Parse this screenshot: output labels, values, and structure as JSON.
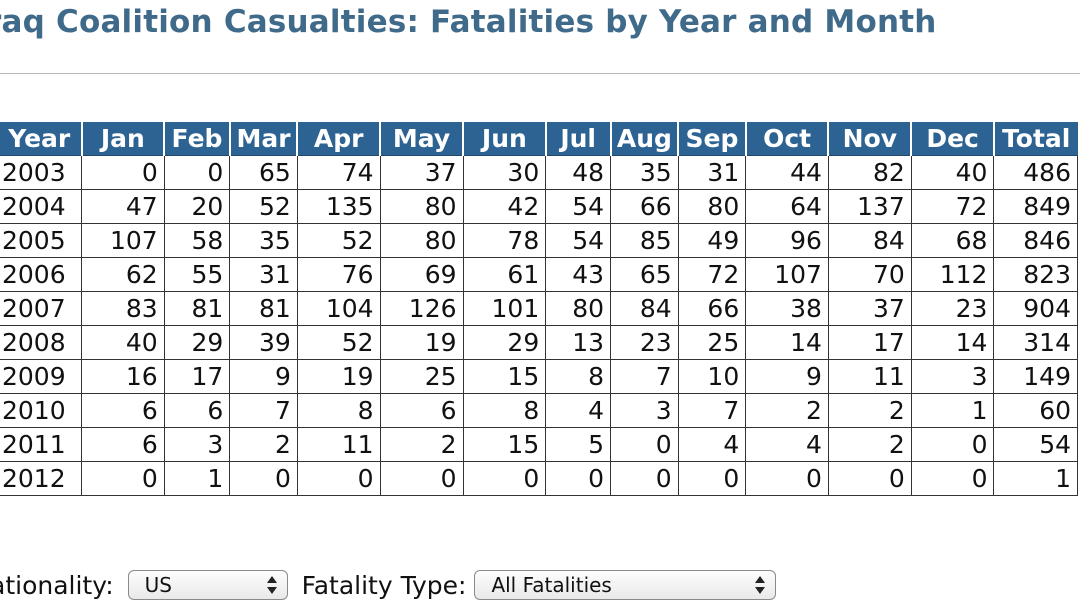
{
  "title": "raq Coalition Casualties: Fatalities by Year and Month",
  "table": {
    "headers": [
      "Year",
      "Jan",
      "Feb",
      "Mar",
      "Apr",
      "May",
      "Jun",
      "Jul",
      "Aug",
      "Sep",
      "Oct",
      "Nov",
      "Dec",
      "Total"
    ],
    "rows": [
      [
        "2003",
        "0",
        "0",
        "65",
        "74",
        "37",
        "30",
        "48",
        "35",
        "31",
        "44",
        "82",
        "40",
        "486"
      ],
      [
        "2004",
        "47",
        "20",
        "52",
        "135",
        "80",
        "42",
        "54",
        "66",
        "80",
        "64",
        "137",
        "72",
        "849"
      ],
      [
        "2005",
        "107",
        "58",
        "35",
        "52",
        "80",
        "78",
        "54",
        "85",
        "49",
        "96",
        "84",
        "68",
        "846"
      ],
      [
        "2006",
        "62",
        "55",
        "31",
        "76",
        "69",
        "61",
        "43",
        "65",
        "72",
        "107",
        "70",
        "112",
        "823"
      ],
      [
        "2007",
        "83",
        "81",
        "81",
        "104",
        "126",
        "101",
        "80",
        "84",
        "66",
        "38",
        "37",
        "23",
        "904"
      ],
      [
        "2008",
        "40",
        "29",
        "39",
        "52",
        "19",
        "29",
        "13",
        "23",
        "25",
        "14",
        "17",
        "14",
        "314"
      ],
      [
        "2009",
        "16",
        "17",
        "9",
        "19",
        "25",
        "15",
        "8",
        "7",
        "10",
        "9",
        "11",
        "3",
        "149"
      ],
      [
        "2010",
        "6",
        "6",
        "7",
        "8",
        "6",
        "8",
        "4",
        "3",
        "7",
        "2",
        "2",
        "1",
        "60"
      ],
      [
        "2011",
        "6",
        "3",
        "2",
        "11",
        "2",
        "15",
        "5",
        "0",
        "4",
        "4",
        "2",
        "0",
        "54"
      ],
      [
        "2012",
        "0",
        "1",
        "0",
        "0",
        "0",
        "0",
        "0",
        "0",
        "0",
        "0",
        "0",
        "0",
        "1"
      ]
    ]
  },
  "filters": {
    "nationality_label": "ationality:",
    "nationality_value": "US",
    "fatality_type_label": "Fatality Type:",
    "fatality_type_value": "All Fatalities"
  },
  "colors": {
    "title": "#3f6a8a",
    "header_bg": "#2d6393",
    "header_text": "#ffffff"
  },
  "icons": {
    "select_arrows": "updown-arrows-icon"
  }
}
